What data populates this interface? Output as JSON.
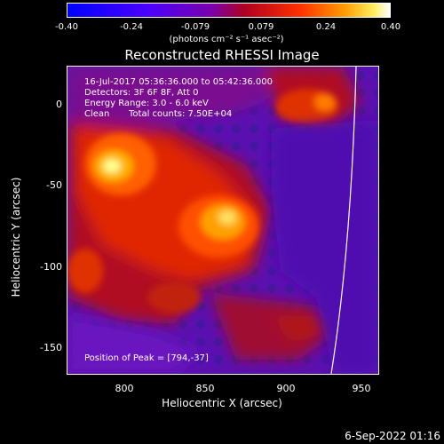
{
  "colorbar": {
    "ticks": [
      "-0.40",
      "-0.24",
      "-0.079",
      "0.079",
      "0.24",
      "0.40"
    ],
    "unit_label": "(photons cm⁻² s⁻¹ asec⁻²)",
    "colors": [
      "#0000ff",
      "#5a00ff",
      "#8a00c0",
      "#b00030",
      "#ff3a00",
      "#ffb000",
      "#ffff80",
      "#ffffff"
    ]
  },
  "title": "Reconstructed RHESSI Image",
  "info": {
    "time_range": "16-Jul-2017 05:36:36.000 to 05:42:36.000",
    "detectors": "Detectors: 3F 6F 8F, Att 0",
    "energy_range": "Energy Range: 3.0 - 6.0 keV",
    "clean": "Clean",
    "total_counts": "Total counts: 7.50E+04",
    "peak_position": "Position of Peak = [794,-37]"
  },
  "axes": {
    "xlabel": "Heliocentric X (arcsec)",
    "ylabel": "Heliocentric Y (arcsec)",
    "xticks": [
      "800",
      "850",
      "900",
      "950"
    ],
    "yticks": [
      "0",
      "-50",
      "-100",
      "-150"
    ]
  },
  "timestamp": "6-Sep-2022 01:16"
}
